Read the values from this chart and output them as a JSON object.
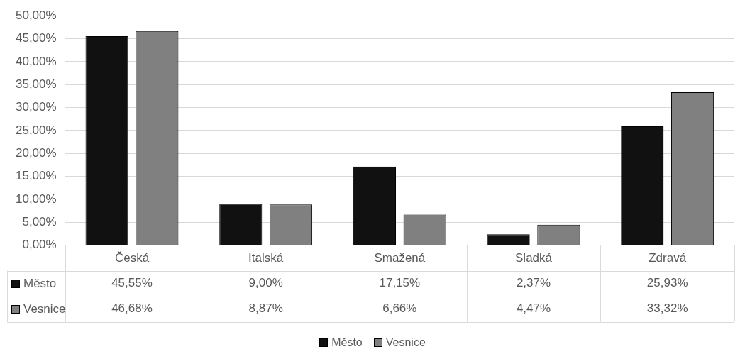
{
  "chart_data": {
    "type": "bar",
    "categories": [
      "Česká",
      "Italská",
      "Smažená",
      "Sladká",
      "Zdravá"
    ],
    "series": [
      {
        "name": "Město",
        "color": "#111111",
        "values": [
          45.55,
          9.0,
          17.15,
          2.37,
          25.93
        ],
        "value_labels": [
          "45,55%",
          "9,00%",
          "17,15%",
          "2,37%",
          "25,93%"
        ]
      },
      {
        "name": "Vesnice",
        "color": "#808080",
        "values": [
          46.68,
          8.87,
          6.66,
          4.47,
          33.32
        ],
        "value_labels": [
          "46,68%",
          "8,87%",
          "6,66%",
          "4,47%",
          "33,32%"
        ]
      }
    ],
    "ylim": [
      0,
      50
    ],
    "yticks": [
      {
        "value": 0,
        "label": "0,00%"
      },
      {
        "value": 5,
        "label": "5,00%"
      },
      {
        "value": 10,
        "label": "10,00%"
      },
      {
        "value": 15,
        "label": "15,00%"
      },
      {
        "value": 20,
        "label": "20,00%"
      },
      {
        "value": 25,
        "label": "25,00%"
      },
      {
        "value": 30,
        "label": "30,00%"
      },
      {
        "value": 35,
        "label": "35,00%"
      },
      {
        "value": 40,
        "label": "40,00%"
      },
      {
        "value": 45,
        "label": "45,00%"
      },
      {
        "value": 50,
        "label": "50,00%"
      }
    ],
    "grid": "y",
    "legend": "bottom"
  }
}
